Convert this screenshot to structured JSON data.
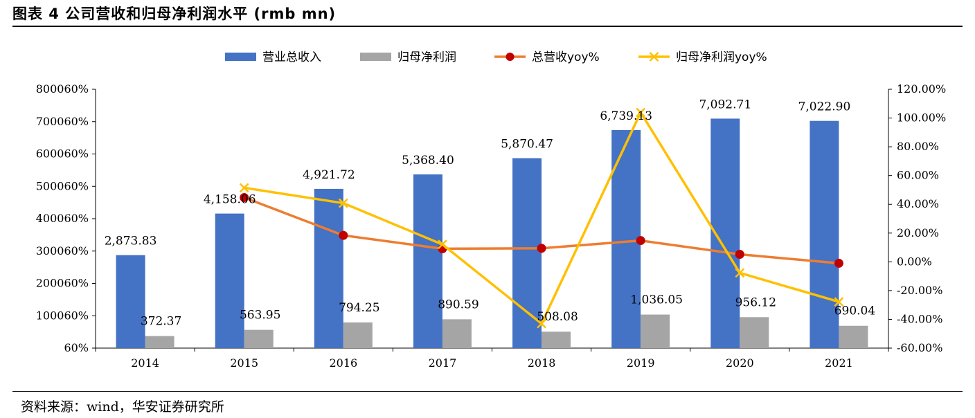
{
  "header": {
    "title": "图表 4 公司营收和归母净利润水平 (rmb mn)"
  },
  "footer": {
    "source": "资料来源：wind，华安证券研究所"
  },
  "colors": {
    "revenue": "#4472C4",
    "profit": "#A5A5A5",
    "rev_yoy": "#ED7D31",
    "rev_marker": "#C00000",
    "profit_yoy": "#FFC000"
  },
  "chart_data": {
    "type": "bar",
    "categories": [
      "2014",
      "2015",
      "2016",
      "2017",
      "2018",
      "2019",
      "2020",
      "2021"
    ],
    "left_ticks": [
      "60%",
      "100060%",
      "200060%",
      "300060%",
      "400060%",
      "500060%",
      "600060%",
      "700060%",
      "800060%"
    ],
    "right_ticks": [
      "-60.00%",
      "-40.00%",
      "-20.00%",
      "0.00%",
      "20.00%",
      "40.00%",
      "60.00%",
      "80.00%",
      "100.00%",
      "120.00%"
    ],
    "ylim_left": [
      0,
      8000
    ],
    "ylim_right": [
      -60,
      120
    ],
    "series": [
      {
        "name": "营业总收入",
        "kind": "bar",
        "axis": "left",
        "values": [
          2873.83,
          4158.06,
          4921.72,
          5368.4,
          5870.47,
          6739.13,
          7092.71,
          7022.9
        ],
        "labels": [
          "2,873.83",
          "4,158.06",
          "4,921.72",
          "5,368.40",
          "5,870.47",
          "6,739.13",
          "7,092.71",
          "7,022.90"
        ]
      },
      {
        "name": "归母净利润",
        "kind": "bar",
        "axis": "left",
        "values": [
          372.37,
          563.95,
          794.25,
          890.59,
          508.08,
          1036.05,
          956.12,
          690.04
        ],
        "labels": [
          "372.37",
          "563.95",
          "794.25",
          "890.59",
          "508.08",
          "1,036.05",
          "956.12",
          "690.04"
        ]
      },
      {
        "name": "总营收yoy%",
        "kind": "line",
        "axis": "right",
        "values": [
          null,
          44.7,
          18.4,
          9.1,
          9.4,
          14.8,
          5.2,
          -1.0
        ]
      },
      {
        "name": "归母净利润yoy%",
        "kind": "line",
        "axis": "right",
        "values": [
          null,
          51.5,
          40.8,
          12.1,
          -43.0,
          103.9,
          -7.7,
          -27.8
        ]
      }
    ]
  }
}
